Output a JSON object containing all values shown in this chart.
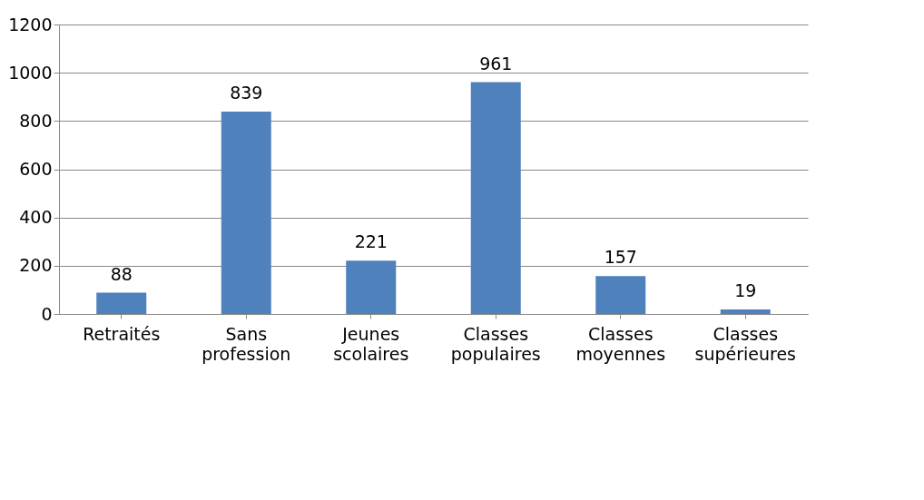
{
  "chart_data": {
    "type": "bar",
    "categories": [
      "Retraités",
      "Sans profession",
      "Jeunes scolaires",
      "Classes populaires",
      "Classes moyennes",
      "Classes supérieures"
    ],
    "values": [
      88,
      839,
      221,
      961,
      157,
      19
    ],
    "color": "#4f81bd",
    "ylim": [
      0,
      1200
    ],
    "yticks": [
      0,
      200,
      400,
      600,
      800,
      1000,
      1200
    ],
    "grid": "y",
    "data_labels": true
  }
}
